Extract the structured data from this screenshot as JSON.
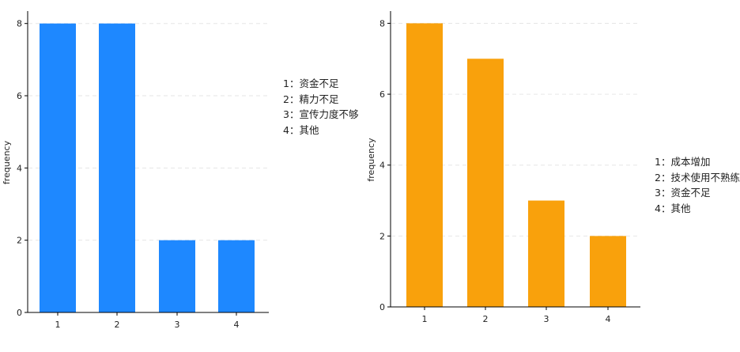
{
  "chart_data": [
    {
      "type": "bar",
      "ylabel": "frequency",
      "xlabel": "",
      "categories": [
        "1",
        "2",
        "3",
        "4"
      ],
      "values": [
        8,
        8,
        2,
        2
      ],
      "ylim": [
        0,
        8.3
      ],
      "yticks": [
        "0",
        "2",
        "4",
        "6",
        "8"
      ],
      "grid": true,
      "color": "#1E88FF",
      "annotation": [
        "1：资金不足",
        "2：精力不足",
        "3：宣传力度不够",
        "4：其他"
      ]
    },
    {
      "type": "bar",
      "ylabel": "frequency",
      "xlabel": "",
      "categories": [
        "1",
        "2",
        "3",
        "4"
      ],
      "values": [
        8,
        7,
        3,
        2
      ],
      "ylim": [
        0,
        8.3
      ],
      "yticks": [
        "0",
        "2",
        "4",
        "6",
        "8"
      ],
      "grid": true,
      "color": "#F9A10C",
      "annotation": [
        "1：成本增加",
        "2：技术使用不熟练",
        "3：资金不足",
        "4：其他"
      ]
    }
  ]
}
